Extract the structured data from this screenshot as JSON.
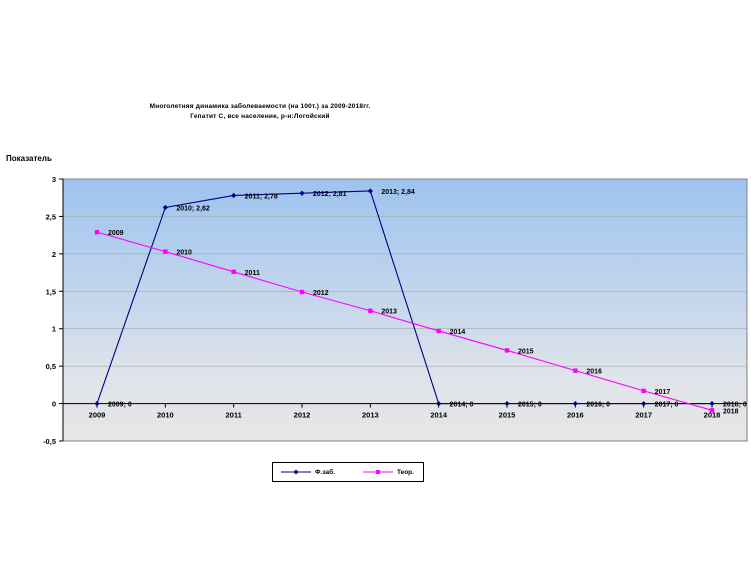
{
  "chart_data": {
    "type": "line",
    "title": "Многолетняя  динамика заболеваемости  (на 100т.) за 2009-2018гг.",
    "subtitle": "Гепатит  С, все население,  р-н:Логойский",
    "ylabel": "Показатель",
    "xlabel": "",
    "ylim": [
      -0.5,
      3
    ],
    "y_ticks": [
      "3",
      "2,5",
      "2",
      "1,5",
      "1",
      "0,5",
      "0",
      "-0,5"
    ],
    "y_tick_values": [
      3,
      2.5,
      2,
      1.5,
      1,
      0.5,
      0,
      -0.5
    ],
    "categories": [
      "2009",
      "2010",
      "2011",
      "2012",
      "2013",
      "2014",
      "2015",
      "2016",
      "2017",
      "2018"
    ],
    "grid": true,
    "legend_position": "bottom",
    "series": [
      {
        "name": "Ф.заб.",
        "color": "#000080",
        "marker": "diamond",
        "values": [
          0,
          2.62,
          2.78,
          2.81,
          2.84,
          0,
          0,
          0,
          0,
          0
        ],
        "labels": [
          "2009; 0",
          "2010; 2,62",
          "2011; 2,78",
          "2012; 2,81",
          "2013; 2,84",
          "2014; 0",
          "2015; 0",
          "2016; 0",
          "2017; 0",
          "2018; 0"
        ]
      },
      {
        "name": "Теор.",
        "color": "#FF00FF",
        "marker": "square",
        "values": [
          2.29,
          2.03,
          1.76,
          1.49,
          1.24,
          0.97,
          0.71,
          0.44,
          0.17,
          -0.09
        ],
        "labels": [
          "2009",
          "2010",
          "2011",
          "2012",
          "2013",
          "2014",
          "2015",
          "2016",
          "2017",
          "2018"
        ]
      }
    ]
  }
}
